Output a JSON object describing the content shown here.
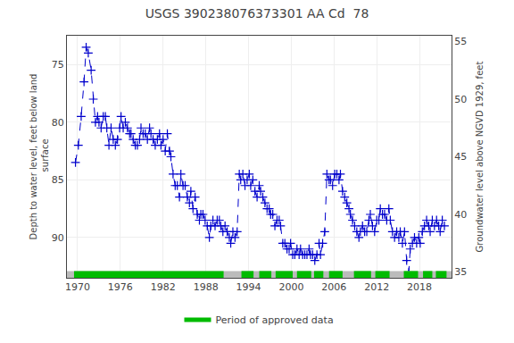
{
  "chart_data": {
    "type": "line",
    "title": "USGS 390238076373301 AA Cd  78",
    "y_label": "Depth to water level, feet below land\n surface",
    "y2_label": "Groundwater level above NGVD 1929, feet",
    "x": [
      1969.7,
      1970.1,
      1970.5,
      1970.9,
      1971.2,
      1971.5,
      1971.9,
      1972.2,
      1972.5,
      1972.8,
      1973.0,
      1973.3,
      1973.6,
      1973.9,
      1974.1,
      1974.4,
      1974.7,
      1975.0,
      1975.3,
      1975.6,
      1975.9,
      1976.1,
      1976.4,
      1976.7,
      1977.0,
      1977.3,
      1977.5,
      1977.8,
      1978.1,
      1978.4,
      1978.7,
      1978.9,
      1979.2,
      1979.5,
      1979.8,
      1980.1,
      1980.3,
      1980.6,
      1980.9,
      1981.2,
      1981.5,
      1981.7,
      1982.0,
      1982.3,
      1982.6,
      1982.9,
      1983.1,
      1983.4,
      1983.7,
      1984.0,
      1984.3,
      1984.5,
      1984.8,
      1985.1,
      1985.4,
      1985.7,
      1985.9,
      1986.2,
      1986.5,
      1986.8,
      1987.1,
      1987.3,
      1987.6,
      1987.9,
      1988.2,
      1988.5,
      1988.7,
      1989.0,
      1989.3,
      1989.6,
      1989.9,
      1990.1,
      1990.4,
      1990.7,
      1991.0,
      1991.3,
      1991.5,
      1991.8,
      1992.1,
      1992.4,
      1992.7,
      1992.9,
      1993.2,
      1993.5,
      1993.8,
      1994.1,
      1994.3,
      1994.6,
      1994.9,
      1995.2,
      1995.5,
      1995.7,
      1996.0,
      1996.3,
      1996.6,
      1996.9,
      1997.1,
      1997.4,
      1997.7,
      1998.0,
      1998.3,
      1998.5,
      1998.8,
      1999.1,
      1999.4,
      1999.7,
      1999.9,
      2000.2,
      2000.5,
      2000.8,
      2001.1,
      2001.3,
      2001.6,
      2001.9,
      2002.2,
      2002.5,
      2002.7,
      2003.0,
      2003.3,
      2003.6,
      2003.9,
      2004.1,
      2004.4,
      2004.7,
      2005.0,
      2005.3,
      2005.5,
      2005.8,
      2006.1,
      2006.4,
      2006.7,
      2006.9,
      2007.2,
      2007.5,
      2007.8,
      2008.1,
      2008.3,
      2008.6,
      2008.9,
      2009.2,
      2009.5,
      2009.7,
      2010.0,
      2010.3,
      2010.6,
      2010.9,
      2011.1,
      2011.4,
      2011.7,
      2012.0,
      2012.3,
      2012.5,
      2012.8,
      2013.1,
      2013.4,
      2013.7,
      2013.9,
      2014.2,
      2014.5,
      2014.8,
      2015.1,
      2015.3,
      2015.6,
      2015.9,
      2016.2,
      2016.5,
      2016.7,
      2017.0,
      2017.3,
      2017.6,
      2017.9,
      2018.1,
      2018.4,
      2018.7,
      2019.0,
      2019.3,
      2019.5,
      2019.8,
      2020.1,
      2020.4,
      2020.7,
      2020.9,
      2021.2,
      2021.5
    ],
    "values": [
      83.5,
      82.0,
      79.5,
      76.5,
      73.5,
      74.0,
      75.5,
      78.0,
      80.0,
      79.5,
      80.0,
      80.5,
      79.5,
      79.5,
      80.5,
      82.0,
      80.5,
      81.5,
      82.0,
      81.5,
      80.5,
      79.5,
      80.5,
      80.0,
      80.5,
      81.0,
      81.0,
      81.5,
      82.0,
      82.0,
      81.5,
      80.5,
      81.0,
      81.0,
      81.5,
      80.5,
      81.0,
      81.5,
      82.0,
      81.5,
      81.0,
      82.0,
      81.5,
      82.5,
      81.0,
      82.5,
      83.0,
      84.5,
      85.5,
      85.5,
      86.5,
      84.5,
      85.5,
      85.5,
      86.5,
      87.0,
      86.0,
      87.5,
      86.5,
      88.0,
      88.5,
      88.0,
      88.0,
      88.5,
      89.0,
      90.0,
      89.0,
      88.5,
      89.0,
      88.5,
      88.5,
      89.0,
      89.5,
      89.0,
      89.5,
      90.0,
      90.5,
      89.5,
      90.0,
      89.5,
      84.5,
      85.0,
      84.5,
      85.5,
      85.0,
      84.5,
      85.5,
      85.0,
      86.0,
      86.5,
      85.5,
      86.0,
      86.5,
      87.0,
      87.5,
      87.5,
      88.0,
      88.0,
      89.0,
      88.5,
      88.5,
      89.0,
      90.5,
      90.5,
      91.0,
      91.0,
      90.5,
      91.5,
      91.5,
      91.0,
      91.5,
      91.0,
      91.5,
      91.5,
      91.5,
      91.0,
      91.5,
      91.5,
      92.0,
      91.5,
      90.5,
      91.5,
      90.5,
      89.5,
      84.5,
      85.0,
      85.0,
      85.5,
      84.5,
      84.5,
      85.0,
      84.5,
      86.0,
      86.5,
      87.0,
      87.5,
      88.0,
      88.5,
      89.0,
      89.5,
      90.0,
      89.5,
      89.0,
      89.5,
      89.5,
      88.5,
      88.0,
      89.0,
      89.5,
      88.5,
      88.5,
      87.5,
      88.0,
      88.0,
      88.5,
      87.5,
      88.5,
      89.5,
      90.0,
      89.5,
      90.0,
      89.5,
      90.5,
      89.5,
      92.0,
      93.0,
      91.0,
      90.5,
      90.0,
      90.5,
      90.0,
      90.5,
      89.5,
      89.0,
      88.5,
      89.0,
      89.5,
      88.5,
      89.0,
      88.5,
      89.0,
      89.5,
      88.5,
      89.0
    ],
    "color": "#0000cc",
    "marker": "+",
    "line_style": "dashed",
    "xlim": [
      1968.5,
      2022.5
    ],
    "xticks": [
      1970,
      1976,
      1982,
      1988,
      1994,
      2000,
      2006,
      2012,
      2018
    ],
    "ylim": [
      93.5,
      72.5
    ],
    "yticks": [
      75,
      80,
      85,
      90
    ],
    "y2lim": [
      34.5,
      55.5
    ],
    "y2ticks": [
      35,
      40,
      45,
      50,
      55
    ],
    "grid": true,
    "legend": "bottom",
    "approved_periods": {
      "name": "Period of approved data",
      "color": "#00bb00",
      "ranges": [
        [
          1969.5,
          1990.5
        ],
        [
          1993.0,
          1994.7
        ],
        [
          1995.5,
          1997.2
        ],
        [
          1997.8,
          2000.2
        ],
        [
          2000.8,
          2002.8
        ],
        [
          2003.2,
          2004.5
        ],
        [
          2005.3,
          2007.2
        ],
        [
          2008.8,
          2011.2
        ],
        [
          2011.8,
          2013.8
        ],
        [
          2015.8,
          2017.8
        ],
        [
          2018.5,
          2019.8
        ],
        [
          2020.3,
          2021.8
        ]
      ]
    }
  }
}
